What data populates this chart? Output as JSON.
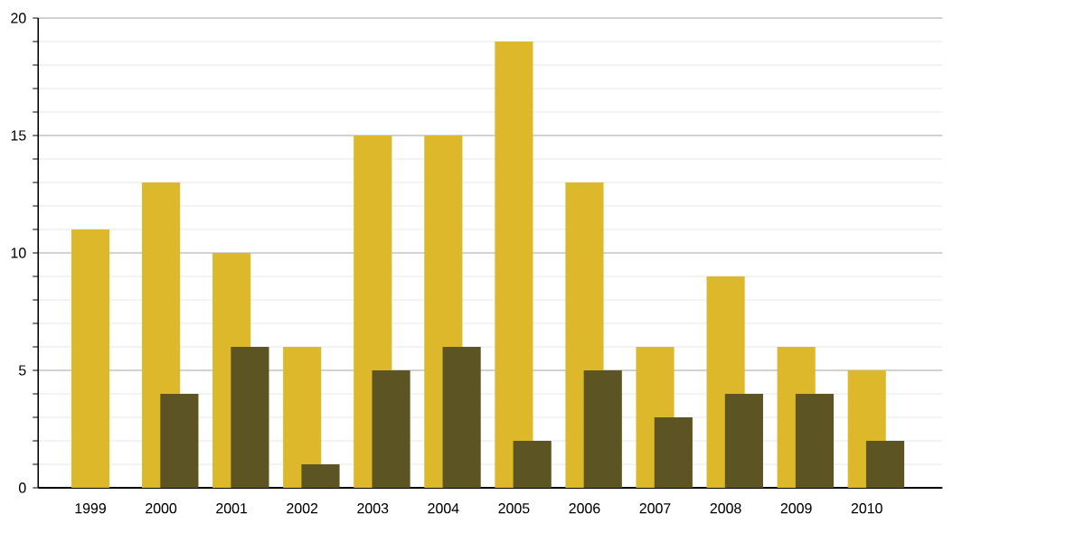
{
  "chart_data": {
    "type": "bar",
    "categories": [
      "1999",
      "2000",
      "2001",
      "2002",
      "2003",
      "2004",
      "2005",
      "2006",
      "2007",
      "2008",
      "2009",
      "2010"
    ],
    "series": [
      {
        "color": "#dcb82a",
        "values": [
          11,
          13,
          10,
          6,
          15,
          15,
          19,
          13,
          6,
          9,
          6,
          5
        ]
      },
      {
        "color": "#5c5423",
        "values": [
          null,
          4,
          6,
          1,
          5,
          6,
          2,
          5,
          3,
          4,
          4,
          2
        ]
      }
    ],
    "ylim": [
      0,
      20
    ],
    "yticks": [
      0,
      5,
      10,
      15,
      20
    ],
    "grid": "y"
  }
}
